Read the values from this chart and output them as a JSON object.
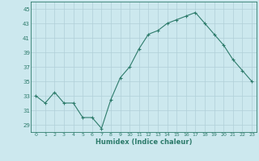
{
  "x": [
    0,
    1,
    2,
    3,
    4,
    5,
    6,
    7,
    8,
    9,
    10,
    11,
    12,
    13,
    14,
    15,
    16,
    17,
    18,
    19,
    20,
    21,
    22,
    23
  ],
  "y": [
    33,
    32,
    33.5,
    32,
    32,
    30,
    30,
    28.5,
    32.5,
    35.5,
    37,
    39.5,
    41.5,
    42,
    43,
    43.5,
    44,
    44.5,
    43,
    41.5,
    40,
    38,
    36.5,
    35
  ],
  "line_color": "#2d7b6b",
  "marker": "+",
  "marker_size": 3,
  "marker_linewidth": 0.8,
  "xlabel": "Humidex (Indice chaleur)",
  "bg_color": "#cce8ee",
  "grid_color": "#b0cfd8",
  "ylim": [
    28,
    46
  ],
  "xlim": [
    -0.5,
    23.5
  ],
  "yticks": [
    29,
    31,
    33,
    35,
    37,
    39,
    41,
    43,
    45
  ],
  "xticks": [
    0,
    1,
    2,
    3,
    4,
    5,
    6,
    7,
    8,
    9,
    10,
    11,
    12,
    13,
    14,
    15,
    16,
    17,
    18,
    19,
    20,
    21,
    22,
    23
  ],
  "xtick_fontsize": 4.5,
  "ytick_fontsize": 5.0,
  "xlabel_fontsize": 6.0,
  "linewidth": 0.8
}
